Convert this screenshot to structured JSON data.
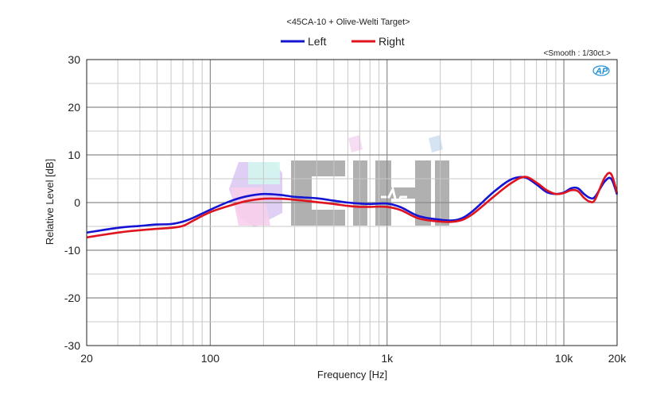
{
  "chart_data": {
    "type": "line",
    "title": "<45CA-10 + Olive-Welti Target>",
    "annotation": "<Smooth : 1/30ct.>",
    "logo_text": "AP",
    "watermark_text": "CIHI",
    "xlabel": "Frequency [Hz]",
    "ylabel": "Relative Level [dB]",
    "xscale": "log",
    "xlim": [
      20,
      20000
    ],
    "ylim": [
      -30,
      30
    ],
    "grid": true,
    "legend_position": "top-center",
    "x_ticks": [
      {
        "value": 20,
        "label": "20"
      },
      {
        "value": 100,
        "label": "100"
      },
      {
        "value": 1000,
        "label": "1k"
      },
      {
        "value": 10000,
        "label": "10k"
      },
      {
        "value": 20000,
        "label": "20k"
      }
    ],
    "y_ticks": [
      {
        "value": 30,
        "label": "30"
      },
      {
        "value": 20,
        "label": "20"
      },
      {
        "value": 10,
        "label": "10"
      },
      {
        "value": 0,
        "label": "0"
      },
      {
        "value": -10,
        "label": "-10"
      },
      {
        "value": -20,
        "label": "-20"
      },
      {
        "value": -30,
        "label": "-30"
      }
    ],
    "series": [
      {
        "name": "Left",
        "color": "#1414d2",
        "x": [
          20,
          30,
          40,
          50,
          60,
          70,
          80,
          100,
          130,
          160,
          200,
          250,
          300,
          400,
          500,
          600,
          700,
          800,
          1000,
          1200,
          1500,
          2000,
          2500,
          3000,
          4000,
          5000,
          6000,
          7000,
          8000,
          9000,
          10000,
          11000,
          12000,
          13000,
          14000,
          15000,
          17000,
          18500,
          20000
        ],
        "y": [
          -6.3,
          -5.3,
          -4.9,
          -4.6,
          -4.5,
          -4.0,
          -3.2,
          -1.5,
          0.3,
          1.3,
          1.8,
          1.6,
          1.2,
          0.9,
          0.4,
          0.0,
          -0.2,
          -0.3,
          -0.2,
          -1.0,
          -2.8,
          -3.6,
          -3.6,
          -2.0,
          2.2,
          4.8,
          5.3,
          3.8,
          2.2,
          1.8,
          2.1,
          3.0,
          3.0,
          1.8,
          1.0,
          1.2,
          4.4,
          5.0,
          1.7
        ]
      },
      {
        "name": "Right",
        "color": "#e0141e",
        "x": [
          20,
          30,
          40,
          50,
          60,
          70,
          80,
          100,
          130,
          160,
          200,
          250,
          300,
          400,
          500,
          600,
          700,
          800,
          1000,
          1200,
          1500,
          2000,
          2500,
          3000,
          4000,
          5000,
          6000,
          7000,
          8000,
          9000,
          10000,
          11000,
          12000,
          13000,
          14000,
          15000,
          17000,
          18500,
          20000
        ],
        "y": [
          -7.3,
          -6.3,
          -5.8,
          -5.5,
          -5.3,
          -4.9,
          -3.8,
          -2.0,
          -0.6,
          0.3,
          0.8,
          0.8,
          0.6,
          0.1,
          -0.3,
          -0.7,
          -0.9,
          -0.9,
          -0.9,
          -1.6,
          -3.3,
          -4.0,
          -3.9,
          -2.6,
          1.2,
          4.0,
          5.4,
          4.2,
          2.6,
          1.8,
          2.0,
          2.6,
          2.4,
          1.0,
          0.2,
          0.6,
          5.2,
          6.0,
          2.0
        ]
      }
    ]
  }
}
